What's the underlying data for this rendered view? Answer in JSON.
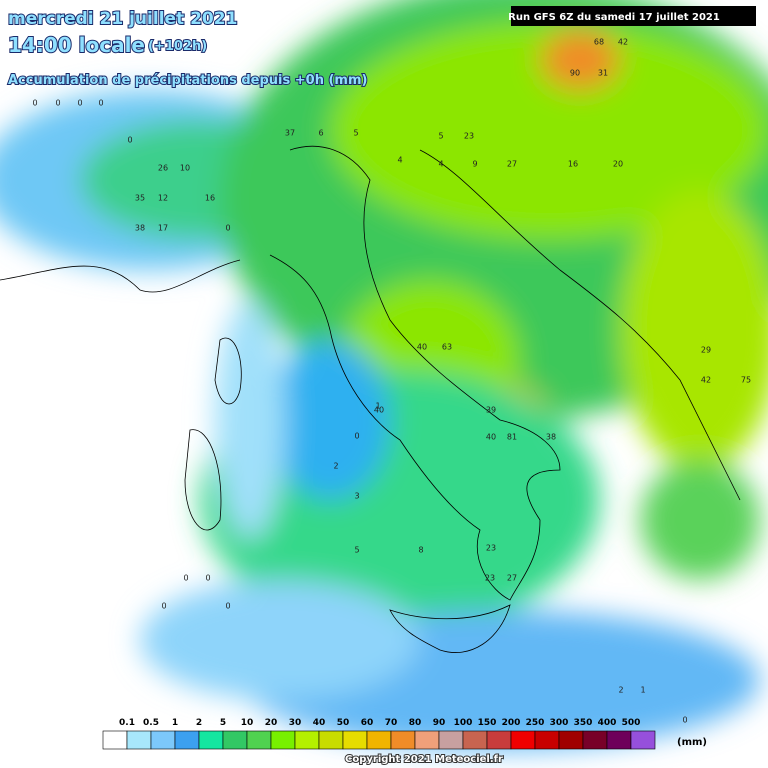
{
  "header": {
    "date": "mercredi 21 juillet 2021",
    "time": "14:00 locale",
    "lead": "(+102h)",
    "subtitle": "Accumulation de précipitations depuis +0h (mm)",
    "run": "Run GFS 6Z du samedi 17 juillet 2021"
  },
  "map": {
    "values": [
      0,
      0,
      0,
      0,
      0,
      26,
      10,
      35,
      12,
      16,
      38,
      17,
      0,
      37,
      6,
      5,
      4,
      9,
      27,
      16,
      20,
      90,
      31,
      68,
      42,
      29,
      75,
      42,
      39,
      40,
      81,
      38,
      40,
      63,
      40,
      23,
      27,
      23,
      1,
      0,
      2,
      3,
      5,
      8,
      0,
      0,
      0,
      0,
      2,
      1,
      0,
      4,
      5,
      23
    ]
  },
  "legend": {
    "labels": [
      "0.1",
      "0.5",
      "1",
      "2",
      "5",
      "10",
      "20",
      "30",
      "40",
      "50",
      "60",
      "70",
      "80",
      "90",
      "100",
      "150",
      "200",
      "250",
      "300",
      "350",
      "400",
      "500"
    ],
    "colors": [
      "#ffffff",
      "#a8e8fc",
      "#7cc8fa",
      "#3ca0f0",
      "#14e6a0",
      "#32c864",
      "#50d250",
      "#78f000",
      "#b4f000",
      "#c8dc00",
      "#e6dc00",
      "#f0b400",
      "#f08c28",
      "#f0a07a",
      "#c8a0a0",
      "#c86450",
      "#c83c3c",
      "#f00000",
      "#c80000",
      "#a00000",
      "#780028",
      "#6e005a",
      "#9650dc"
    ],
    "unit": "(mm)"
  },
  "footer": {
    "copyright": "Copyright 2021 Meteociel.fr"
  }
}
